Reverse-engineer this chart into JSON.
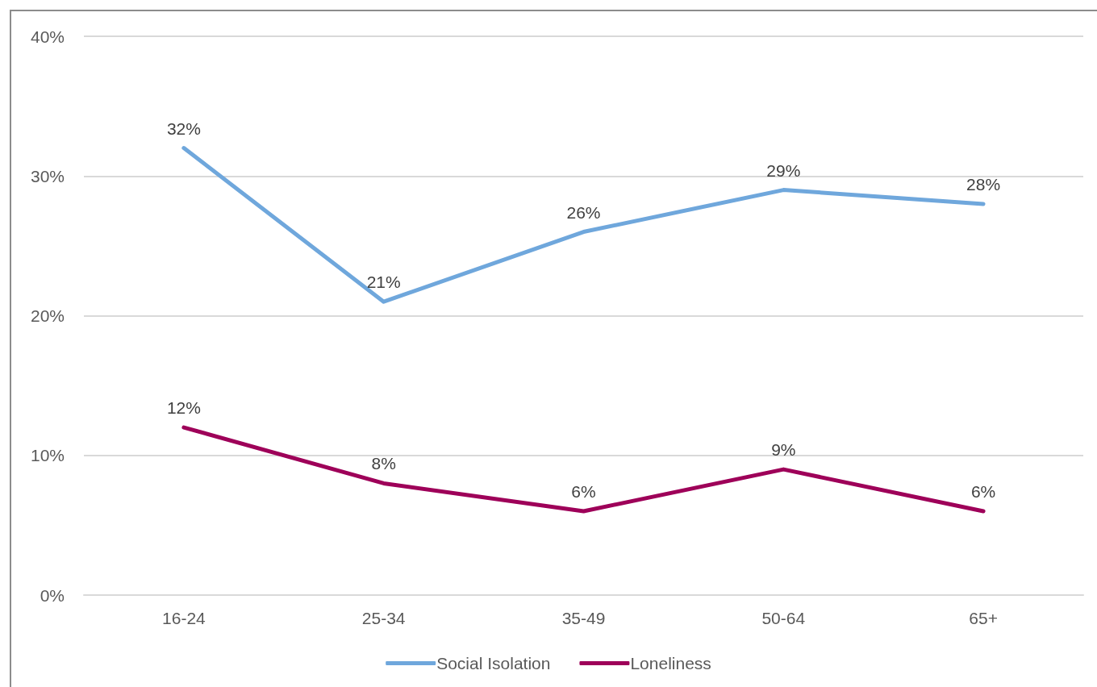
{
  "chart_data": {
    "type": "line",
    "categories": [
      "16-24",
      "25-34",
      "35-49",
      "50-64",
      "65+"
    ],
    "series": [
      {
        "name": "Social Isolation",
        "color": "#6fa7dc",
        "values": [
          32,
          21,
          26,
          29,
          28
        ],
        "value_labels": [
          "32%",
          "21%",
          "26%",
          "29%",
          "28%"
        ]
      },
      {
        "name": "Loneliness",
        "color": "#9e0059",
        "values": [
          12,
          8,
          6,
          9,
          6
        ],
        "value_labels": [
          "12%",
          "8%",
          "6%",
          "9%",
          "6%"
        ]
      }
    ],
    "ylim": [
      0,
      40
    ],
    "yticks": [
      {
        "value": 0,
        "label": "0%"
      },
      {
        "value": 10,
        "label": "10%"
      },
      {
        "value": 20,
        "label": "20%"
      },
      {
        "value": 30,
        "label": "30%"
      },
      {
        "value": 40,
        "label": "40%"
      }
    ],
    "grid": "y",
    "legend": "bottom",
    "marker": "none",
    "line_style": "solid"
  }
}
